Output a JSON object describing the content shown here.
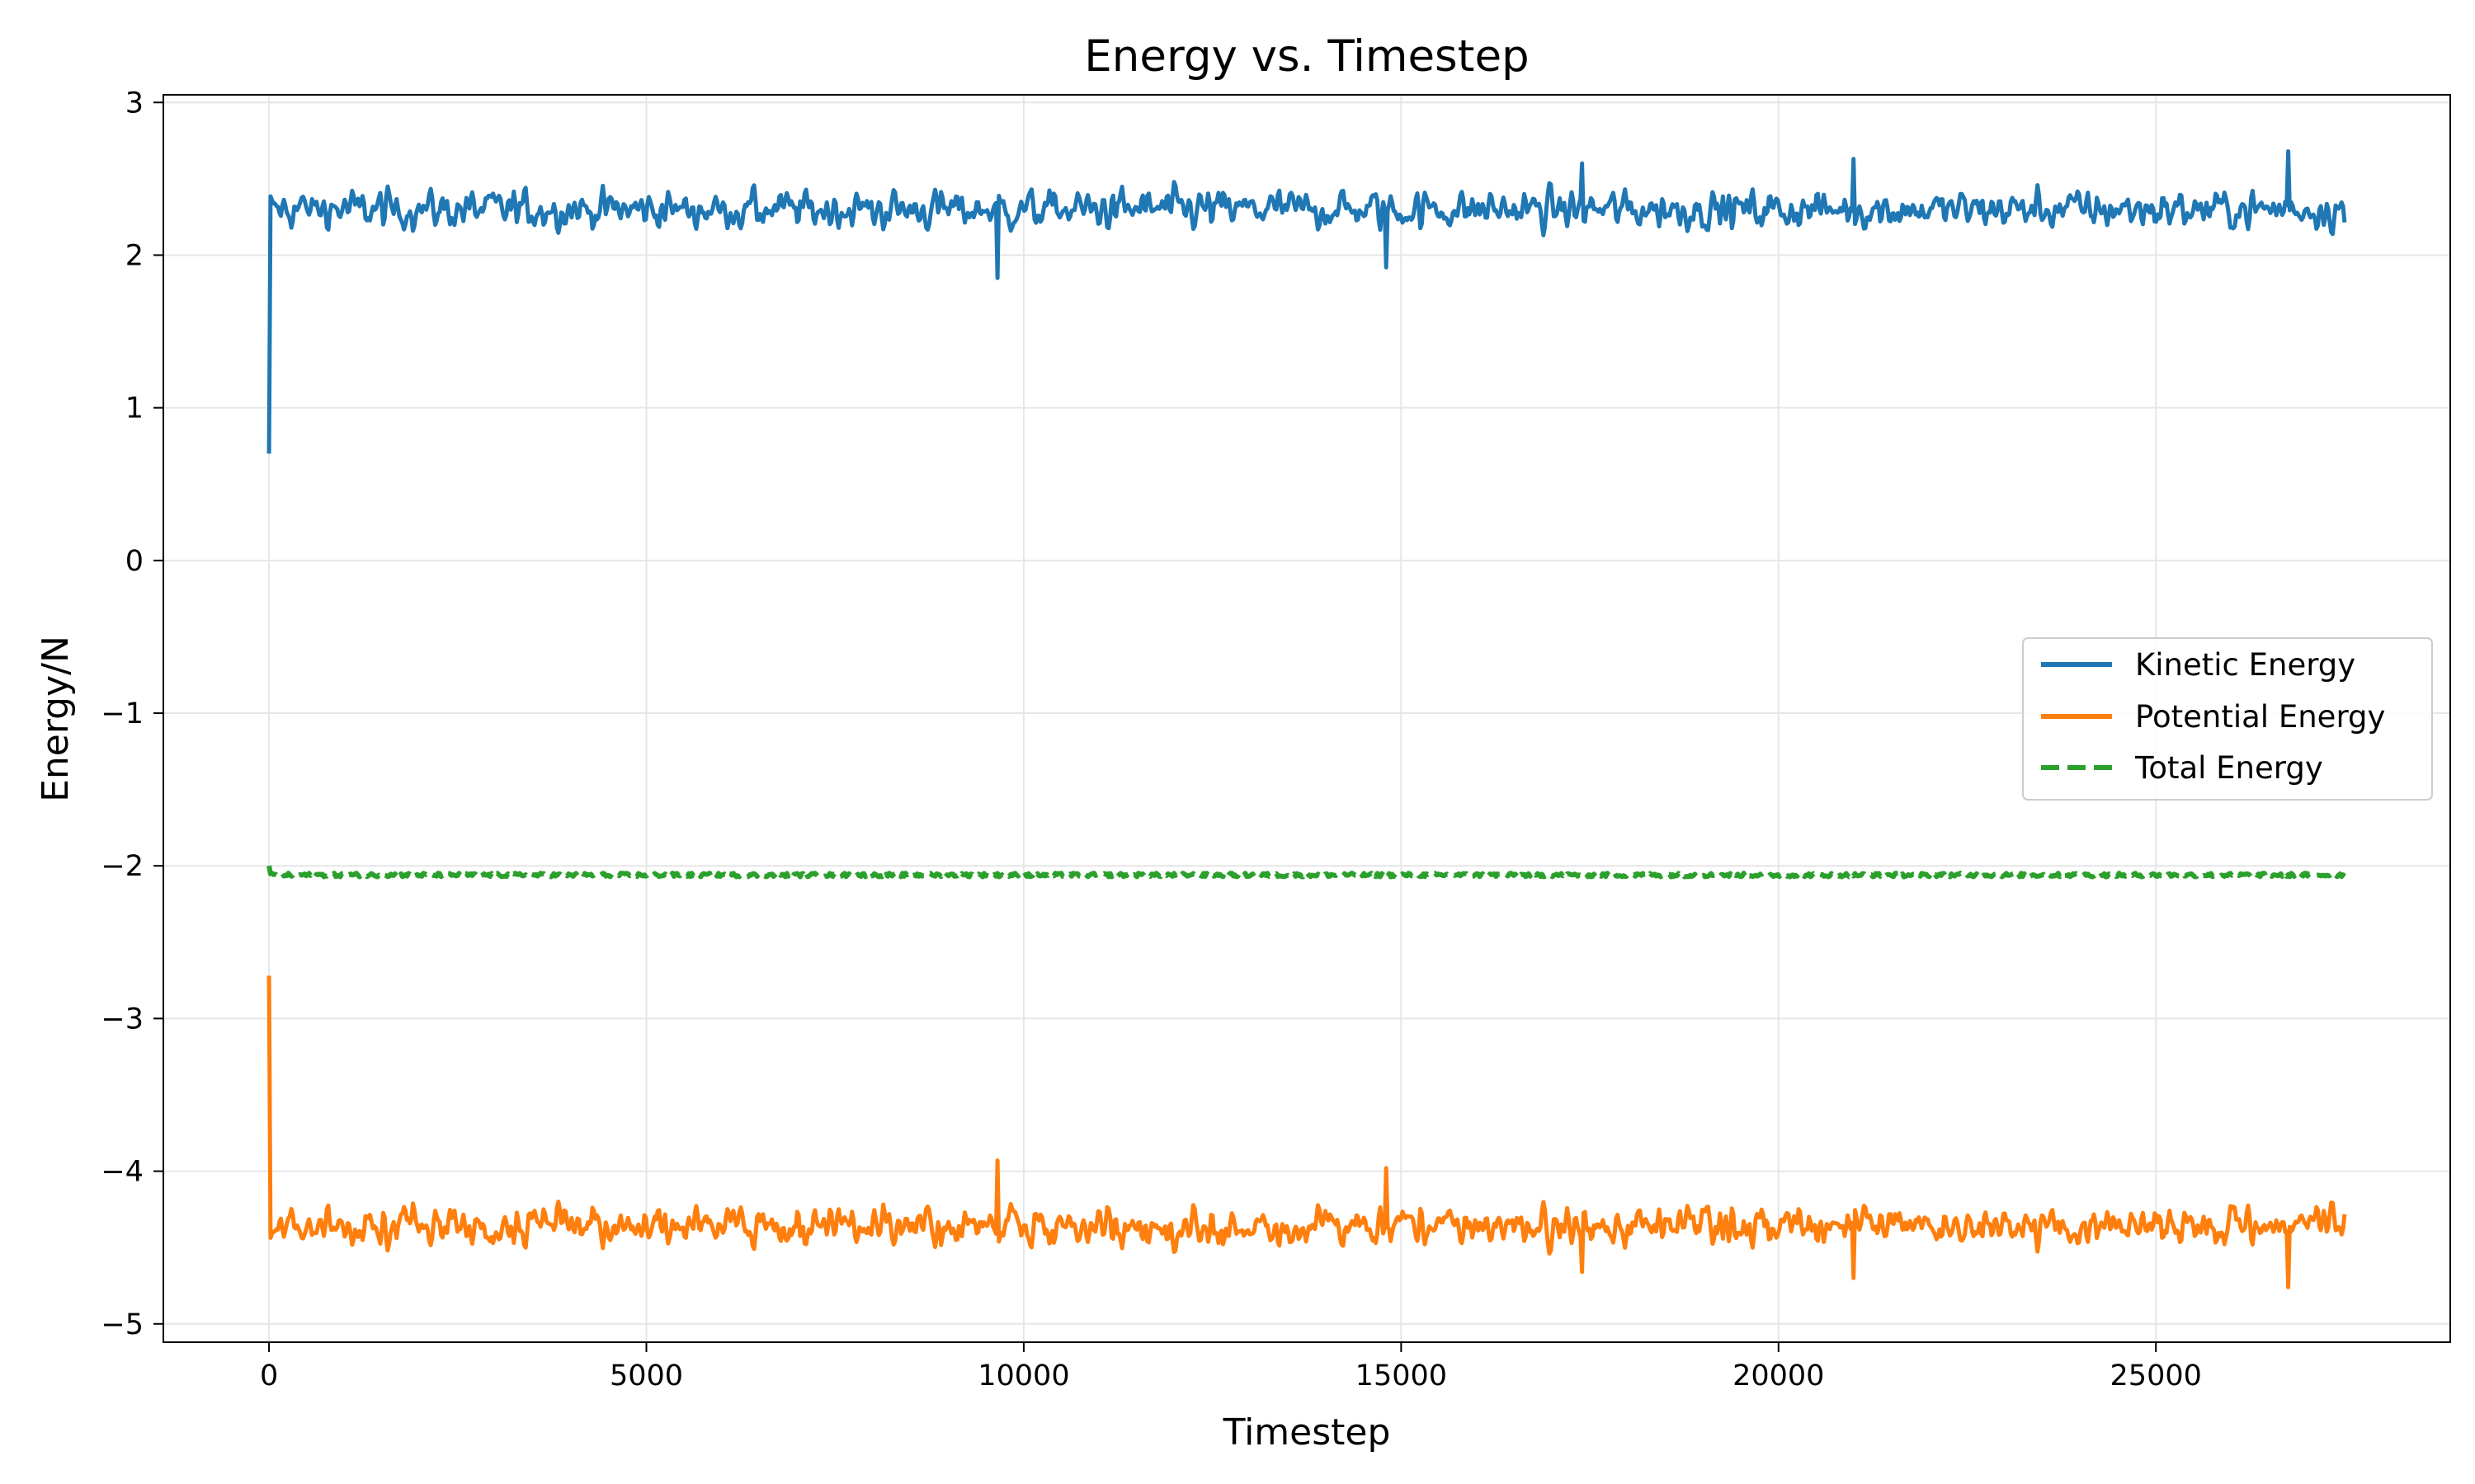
{
  "chart_data": {
    "type": "line",
    "title": "Energy vs. Timestep",
    "xlabel": "Timestep",
    "ylabel": "Energy/N",
    "xlim": [
      -1400,
      28900
    ],
    "ylim": [
      -5.12,
      3.05
    ],
    "x_ticks": [
      0,
      5000,
      10000,
      15000,
      20000,
      25000
    ],
    "x_tick_labels": [
      "0",
      "5000",
      "10000",
      "15000",
      "20000",
      "25000"
    ],
    "y_ticks": [
      3,
      2,
      1,
      0,
      -1,
      -2,
      -3,
      -4,
      -5
    ],
    "y_tick_labels": [
      "3",
      "2",
      "1",
      "0",
      "−1",
      "−2",
      "−3",
      "−4",
      "−5"
    ],
    "grid": true,
    "legend_position": "center-right",
    "x_range": [
      0,
      27500
    ],
    "series": [
      {
        "name": "Kinetic Energy",
        "color": "#1f77b4",
        "style": "solid",
        "initial_value": 0.7,
        "mean": 2.3,
        "noise_amplitude": 0.12,
        "min": 1.85,
        "max": 2.68,
        "spikes": [
          [
            9650,
            1.85
          ],
          [
            14800,
            1.92
          ],
          [
            26750,
            2.68
          ],
          [
            21000,
            2.63
          ],
          [
            17400,
            2.6
          ]
        ]
      },
      {
        "name": "Potential Energy",
        "color": "#ff7f0e",
        "style": "solid",
        "initial_value": -2.72,
        "mean": -4.35,
        "noise_amplitude": 0.12,
        "min": -4.76,
        "max": -3.93,
        "spikes": [
          [
            9650,
            -3.93
          ],
          [
            14800,
            -3.98
          ],
          [
            26750,
            -4.76
          ],
          [
            21000,
            -4.7
          ],
          [
            17400,
            -4.66
          ]
        ]
      },
      {
        "name": "Total Energy",
        "color": "#2ca02c",
        "style": "dashed",
        "initial_value": -2.0,
        "mean": -2.06,
        "noise_amplitude": 0.012,
        "min": -2.09,
        "max": -2.0
      }
    ]
  }
}
